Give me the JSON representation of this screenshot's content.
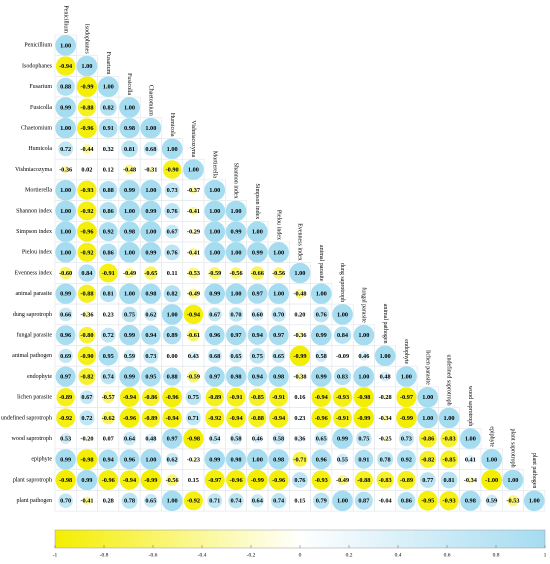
{
  "chart_data": {
    "type": "correlogram",
    "labels": [
      "Penicillium",
      "Isodophanes",
      "Fusarium",
      "Fusicolla",
      "Chaetomium",
      "Humicola",
      "Vishniacozyma",
      "Mortierella",
      "Shannon index",
      "Simpson index",
      "Pielou index",
      "Evenness index",
      "animal parasite",
      "dung saprotroph",
      "fungal parasite",
      "animal pathogen",
      "endophyte",
      "lichen parasite",
      "undefined saprotroph",
      "wood saprotroph",
      "epiphyte",
      "plant saprotroph",
      "plant pathogen"
    ],
    "values": [
      [
        1
      ],
      [
        -0.94,
        1
      ],
      [
        0.88,
        -0.99,
        1
      ],
      [
        0.99,
        -0.88,
        0.82,
        1
      ],
      [
        1,
        -0.96,
        0.91,
        0.98,
        1
      ],
      [
        0.72,
        -0.44,
        0.32,
        0.81,
        0.68,
        1
      ],
      [
        -0.36,
        0.02,
        0.12,
        -0.48,
        -0.31,
        -0.9,
        1
      ],
      [
        1,
        -0.93,
        0.88,
        0.99,
        1,
        0.73,
        -0.37,
        1
      ],
      [
        1,
        -0.92,
        0.86,
        1,
        0.99,
        0.76,
        -0.41,
        1,
        1
      ],
      [
        1,
        -0.96,
        0.92,
        0.98,
        1,
        0.67,
        -0.29,
        1,
        0.99,
        1
      ],
      [
        1,
        -0.92,
        0.86,
        1,
        0.99,
        0.76,
        -0.41,
        1,
        1,
        0.99,
        1
      ],
      [
        -0.6,
        0.84,
        -0.91,
        -0.49,
        -0.65,
        0.11,
        -0.53,
        -0.59,
        -0.56,
        -0.66,
        -0.56,
        1
      ],
      [
        0.99,
        -0.88,
        0.81,
        1,
        0.98,
        0.82,
        -0.49,
        0.99,
        1,
        0.97,
        1,
        -0.48,
        1
      ],
      [
        0.66,
        -0.36,
        0.23,
        0.75,
        0.62,
        1,
        -0.94,
        0.67,
        0.7,
        0.6,
        0.7,
        0.2,
        0.76,
        1
      ],
      [
        0.96,
        -0.8,
        0.72,
        0.99,
        0.94,
        0.89,
        -0.61,
        0.96,
        0.97,
        0.94,
        0.97,
        -0.36,
        0.99,
        0.84,
        1
      ],
      [
        0.69,
        -0.9,
        0.95,
        0.59,
        0.73,
        0,
        0.43,
        0.68,
        0.65,
        0.75,
        0.65,
        -0.99,
        0.58,
        -0.09,
        0.46,
        1
      ],
      [
        0.97,
        -0.82,
        0.74,
        0.99,
        0.95,
        0.88,
        -0.59,
        0.97,
        0.98,
        0.94,
        0.98,
        -0.38,
        0.99,
        0.83,
        1,
        0.48,
        1
      ],
      [
        -0.89,
        0.67,
        -0.57,
        -0.94,
        -0.86,
        -0.96,
        0.75,
        -0.89,
        -0.91,
        -0.85,
        -0.91,
        0.16,
        -0.94,
        -0.93,
        -0.98,
        -0.28,
        -0.97,
        1
      ],
      [
        -0.92,
        0.72,
        -0.62,
        -0.96,
        -0.89,
        -0.94,
        0.71,
        -0.92,
        -0.94,
        -0.88,
        -0.94,
        0.23,
        -0.96,
        -0.91,
        -0.99,
        -0.34,
        -0.99,
        1,
        1
      ],
      [
        0.53,
        -0.2,
        0.07,
        0.64,
        0.48,
        0.97,
        -0.98,
        0.54,
        0.58,
        0.46,
        0.58,
        0.36,
        0.65,
        0.99,
        0.75,
        -0.25,
        0.73,
        -0.86,
        -0.83,
        1
      ],
      [
        0.99,
        -0.98,
        0.94,
        0.96,
        1,
        0.62,
        -0.23,
        0.99,
        0.98,
        1,
        0.98,
        -0.71,
        0.96,
        0.55,
        0.91,
        0.78,
        0.92,
        -0.82,
        -0.85,
        0.41,
        1
      ],
      [
        -0.98,
        0.99,
        -0.96,
        -0.94,
        -0.99,
        -0.56,
        0.15,
        -0.97,
        -0.96,
        -0.99,
        -0.96,
        0.76,
        -0.93,
        -0.49,
        -0.88,
        -0.83,
        -0.89,
        0.77,
        0.81,
        -0.34,
        -1,
        1
      ],
      [
        0.7,
        -0.41,
        0.28,
        0.78,
        0.65,
        1,
        -0.92,
        0.71,
        0.74,
        0.64,
        0.74,
        0.15,
        0.79,
        1,
        0.87,
        -0.04,
        0.86,
        -0.95,
        -0.93,
        0.98,
        0.59,
        -0.53,
        1
      ]
    ],
    "value_labels": [
      [
        "1.00"
      ],
      [
        "-0.94",
        "1.00"
      ],
      [
        "0.88",
        "-0.99",
        "1.00"
      ],
      [
        "0.99",
        "-0.88",
        "0.82",
        "1.00"
      ],
      [
        "1.00",
        "-0.96",
        "0.91",
        "0.98",
        "1.00"
      ],
      [
        "0.72",
        "-0.44",
        "0.32",
        "0.81",
        "0.68",
        "1.00"
      ],
      [
        "-0.36",
        "0.02",
        "0.12",
        "-0.48",
        "-0.31",
        "-0.90",
        "1.00"
      ],
      [
        "1.00",
        "-0.93",
        "0.88",
        "0.99",
        "1.00",
        "0.73",
        "-0.37",
        "1.00"
      ],
      [
        "1.00",
        "-0.92",
        "0.86",
        "1.00",
        "0.99",
        "0.76",
        "-0.41",
        "1.00",
        "1.00"
      ],
      [
        "1.00",
        "-0.96",
        "0.92",
        "0.98",
        "1.00",
        "0.67",
        "-0.29",
        "1.00",
        "0.99",
        "1.00"
      ],
      [
        "1.00",
        "-0.92",
        "0.86",
        "1.00",
        "0.99",
        "0.76",
        "-0.41",
        "1.00",
        "1.00",
        "0.99",
        "1.00"
      ],
      [
        "-0.60",
        "0.84",
        "-0.91",
        "-0.49",
        "-0.65",
        "0.11",
        "-0.53",
        "-0.59",
        "-0.56",
        "-0.66",
        "-0.56",
        "1.00"
      ],
      [
        "0.99",
        "-0.88",
        "0.81",
        "1.00",
        "0.98",
        "0.82",
        "-0.49",
        "0.99",
        "1.00",
        "0.97",
        "1.00",
        "-0.48",
        "1.00"
      ],
      [
        "0.66",
        "-0.36",
        "0.23",
        "0.75",
        "0.62",
        "1.00",
        "-0.94",
        "0.67",
        "0.70",
        "0.60",
        "0.70",
        "0.20",
        "0.76",
        "1.00"
      ],
      [
        "0.96",
        "-0.80",
        "0.72",
        "0.99",
        "0.94",
        "0.89",
        "-0.61",
        "0.96",
        "0.97",
        "0.94",
        "0.97",
        "-0.36",
        "0.99",
        "0.84",
        "1.00"
      ],
      [
        "0.69",
        "-0.90",
        "0.95",
        "0.59",
        "0.73",
        "0.00",
        "0.43",
        "0.68",
        "0.65",
        "0.75",
        "0.65",
        "-0.99",
        "0.58",
        "-0.09",
        "0.46",
        "1.00"
      ],
      [
        "0.97",
        "-0.82",
        "0.74",
        "0.99",
        "0.95",
        "0.88",
        "-0.59",
        "0.97",
        "0.98",
        "0.94",
        "0.98",
        "-0.38",
        "0.99",
        "0.83",
        "1.00",
        "0.48",
        "1.00"
      ],
      [
        "-0.89",
        "0.67",
        "-0.57",
        "-0.94",
        "-0.86",
        "-0.96",
        "0.75",
        "-0.89",
        "-0.91",
        "-0.85",
        "-0.91",
        "0.16",
        "-0.94",
        "-0.93",
        "-0.98",
        "-0.28",
        "-0.97",
        "1.00"
      ],
      [
        "-0.92",
        "0.72",
        "-0.62",
        "-0.96",
        "-0.89",
        "-0.94",
        "0.71",
        "-0.92",
        "-0.94",
        "-0.88",
        "-0.94",
        "0.23",
        "-0.96",
        "-0.91",
        "-0.99",
        "-0.34",
        "-0.99",
        "1.00",
        "1.00"
      ],
      [
        "0.53",
        "-0.20",
        "0.07",
        "0.64",
        "0.48",
        "0.97",
        "-0.98",
        "0.54",
        "0.58",
        "0.46",
        "0.58",
        "0.36",
        "0.65",
        "0.99",
        "0.75",
        "-0.25",
        "0.73",
        "-0.86",
        "-0.83",
        "1.00"
      ],
      [
        "0.99",
        "-0.98",
        "0.94",
        "0.96",
        "1.00",
        "0.62",
        "-0.23",
        "0.99",
        "0.98",
        "1.00",
        "0.98",
        "-0.71",
        "0.96",
        "0.55",
        "0.91",
        "0.78",
        "0.92",
        "-0.82",
        "-0.85",
        "0.41",
        "1.00"
      ],
      [
        "-0.98",
        "0.99",
        "-0.96",
        "-0.94",
        "-0.99",
        "-0.56",
        "0.15",
        "-0.97",
        "-0.96",
        "-0.99",
        "-0.96",
        "0.76",
        "-0.93",
        "-0.49",
        "-0.88",
        "-0.83",
        "-0.89",
        "0.77",
        "0.81",
        "-0.34",
        "-1.00",
        "1.00"
      ],
      [
        "0.70",
        "-0.41",
        "0.28",
        "0.78",
        "0.65",
        "1.00",
        "-0.92",
        "0.71",
        "0.74",
        "0.64",
        "0.74",
        "0.15",
        "0.79",
        "1.00",
        "0.87",
        "-0.04",
        "0.86",
        "-0.95",
        "-0.93",
        "0.98",
        "0.59",
        "-0.53",
        "1.00"
      ]
    ],
    "colors": [
      "#f4ee00",
      "#ffffff",
      "#a5dcf0"
    ],
    "clim": [
      -1,
      1
    ],
    "cticks": [
      -1,
      -0.8,
      -0.6,
      -0.4,
      -0.2,
      0,
      0.2,
      0.4,
      0.6,
      0.8,
      1
    ]
  }
}
